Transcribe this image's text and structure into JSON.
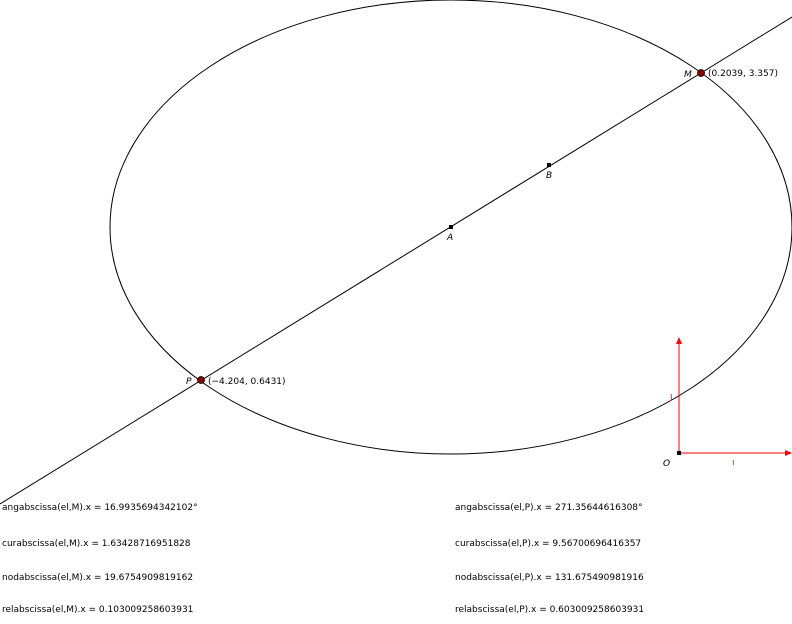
{
  "points": {
    "M": {
      "name": "M",
      "coord_label": "(0.2039, 3.357)"
    },
    "P": {
      "name": "P",
      "coord_label": "(−4.204, 0.6431)"
    },
    "A": {
      "name": "A"
    },
    "B": {
      "name": "B"
    },
    "O": {
      "name": "O"
    }
  },
  "axes": {
    "i_label": "ı",
    "j_label": "ȷ"
  },
  "readouts": {
    "left": [
      "angabscissa(el,M).x = 16.9935694342102°",
      "curabscissa(el,M).x = 1.63428716951828",
      "nodabscissa(el,M).x = 19.6754909819162",
      "relabscissa(el,M).x = 0.103009258603931"
    ],
    "right": [
      "angabscissa(el,P).x = 271.35644616308°",
      "curabscissa(el,P).x = 9.56700696416357",
      "nodabscissa(el,P).x = 131.67549098191​6",
      "relabscissa(el,P).x = 0.603009258603931"
    ]
  },
  "colors": {
    "curve": "#000000",
    "point_fill": "#8b0000",
    "axis_vectors": "#ff0000"
  }
}
